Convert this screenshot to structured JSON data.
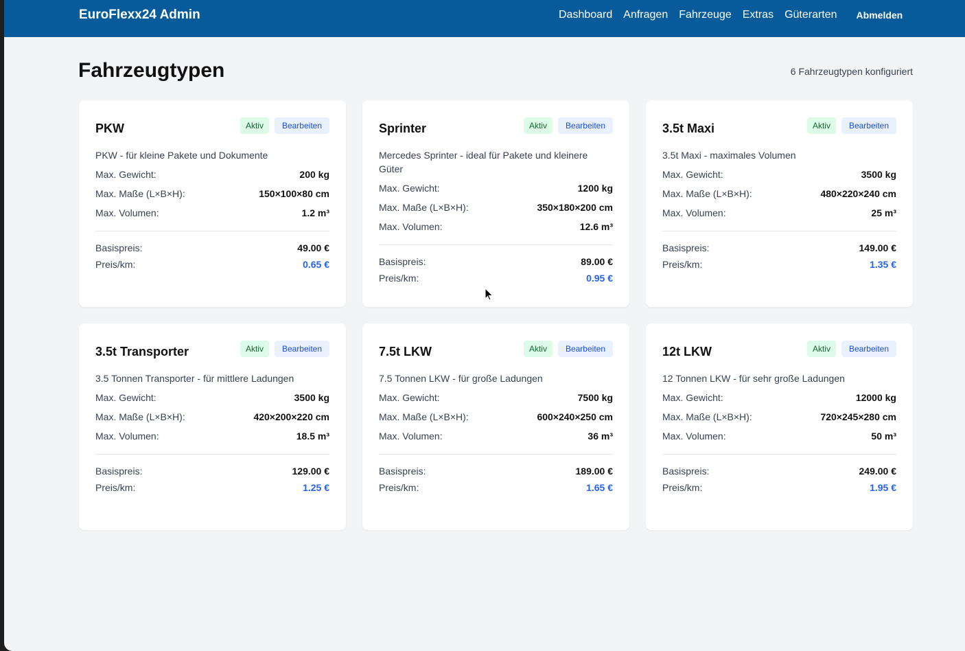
{
  "header": {
    "brand": "EuroFlexx24 Admin",
    "nav": [
      "Dashboard",
      "Anfragen",
      "Fahrzeuge",
      "Extras",
      "Güterarten"
    ],
    "logout": "Abmelden"
  },
  "page": {
    "title": "Fahrzeugtypen",
    "count_text": "6 Fahrzeugtypen konfiguriert"
  },
  "labels": {
    "status": "Aktiv",
    "edit": "Bearbeiten",
    "weight": "Max. Gewicht:",
    "dims": "Max. Maße (L×B×H):",
    "volume": "Max. Volumen:",
    "base_price": "Basispreis:",
    "price_km": "Preis/km:"
  },
  "vehicles": [
    {
      "name": "PKW",
      "desc": "PKW - für kleine Pakete und Dokumente",
      "weight": "200 kg",
      "dims": "150×100×80 cm",
      "volume": "1.2 m³",
      "base": "49.00 €",
      "km": "0.65 €"
    },
    {
      "name": "Sprinter",
      "desc": "Mercedes Sprinter - ideal für Pakete und kleinere Güter",
      "weight": "1200 kg",
      "dims": "350×180×200 cm",
      "volume": "12.6 m³",
      "base": "89.00 €",
      "km": "0.95 €"
    },
    {
      "name": "3.5t Maxi",
      "desc": "3.5t Maxi - maximales Volumen",
      "weight": "3500 kg",
      "dims": "480×220×240 cm",
      "volume": "25 m³",
      "base": "149.00 €",
      "km": "1.35 €"
    },
    {
      "name": "3.5t Transporter",
      "desc": "3.5 Tonnen Transporter - für mittlere Ladungen",
      "weight": "3500 kg",
      "dims": "420×200×220 cm",
      "volume": "18.5 m³",
      "base": "129.00 €",
      "km": "1.25 €"
    },
    {
      "name": "7.5t LKW",
      "desc": "7.5 Tonnen LKW - für große Ladungen",
      "weight": "7500 kg",
      "dims": "600×240×250 cm",
      "volume": "36 m³",
      "base": "189.00 €",
      "km": "1.65 €"
    },
    {
      "name": "12t LKW",
      "desc": "12 Tonnen LKW - für sehr große Ladungen",
      "weight": "12000 kg",
      "dims": "720×245×280 cm",
      "volume": "50 m³",
      "base": "249.00 €",
      "km": "1.95 €"
    }
  ]
}
